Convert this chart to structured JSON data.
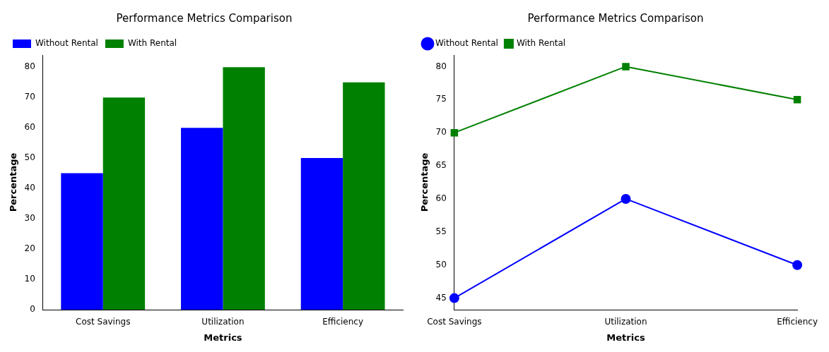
{
  "chart_data": [
    {
      "type": "bar",
      "title": "Performance Metrics Comparison",
      "xlabel": "Metrics",
      "ylabel": "Percentage",
      "categories": [
        "Cost Savings",
        "Utilization",
        "Efficiency"
      ],
      "series": [
        {
          "name": "Without Rental",
          "color": "#0000ff",
          "values": [
            45,
            60,
            50
          ]
        },
        {
          "name": "With Rental",
          "color": "#008000",
          "values": [
            70,
            80,
            75
          ]
        }
      ],
      "ylim": [
        0,
        84
      ],
      "yticks": [
        0,
        10,
        20,
        30,
        40,
        50,
        60,
        70,
        80
      ],
      "legend": "top left",
      "grid": false
    },
    {
      "type": "line",
      "title": "Performance Metrics Comparison",
      "xlabel": "Metrics",
      "ylabel": "Percentage",
      "categories": [
        "Cost Savings",
        "Utilization",
        "Efficiency"
      ],
      "series": [
        {
          "name": "Without Rental",
          "color": "#0000ff",
          "values": [
            45,
            60,
            50
          ],
          "marker": "circle"
        },
        {
          "name": "With Rental",
          "color": "#008000",
          "values": [
            70,
            80,
            75
          ],
          "marker": "square"
        }
      ],
      "ylim": [
        43.25,
        81.75
      ],
      "yticks": [
        45,
        50,
        55,
        60,
        65,
        70,
        75,
        80
      ],
      "legend": "top left",
      "grid": false
    }
  ]
}
